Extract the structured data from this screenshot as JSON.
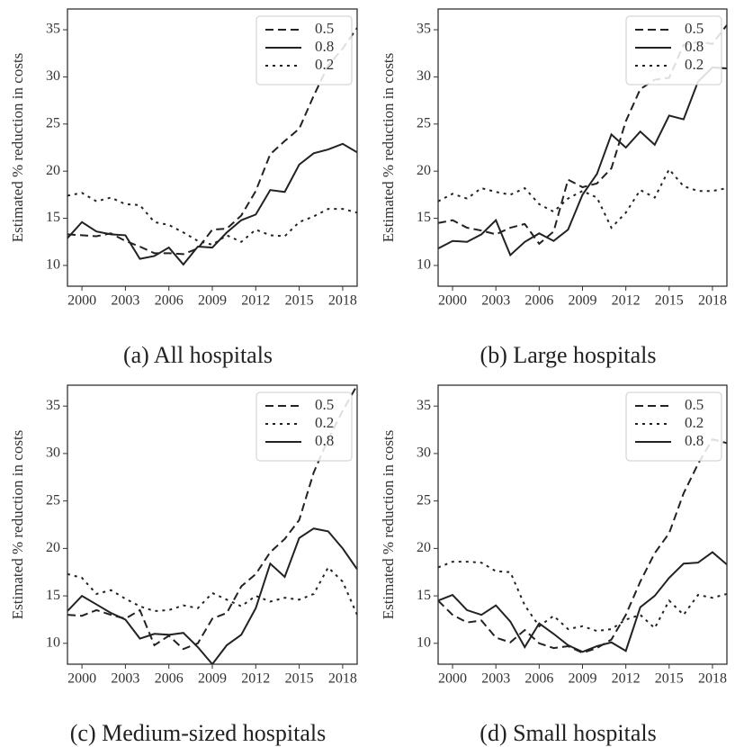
{
  "chart_data": [
    {
      "type": "line",
      "caption": "(a) All hospitals",
      "ylabel": "Estimated % reduction in costs",
      "x": [
        1999,
        2000,
        2001,
        2002,
        2003,
        2004,
        2005,
        2006,
        2007,
        2008,
        2009,
        2010,
        2011,
        2012,
        2013,
        2014,
        2015,
        2016,
        2017,
        2018,
        2019
      ],
      "xlim": [
        1999,
        2019
      ],
      "xticks": [
        2000,
        2003,
        2006,
        2009,
        2012,
        2015,
        2018
      ],
      "ylim": [
        7.8,
        37.2
      ],
      "yticks": [
        10,
        15,
        20,
        25,
        30,
        35
      ],
      "legend": "upper right",
      "series": [
        {
          "name": "0.5",
          "color": "#222222",
          "dash": "dashed",
          "values": [
            13.3,
            13.2,
            13.1,
            13.4,
            12.6,
            12.0,
            11.3,
            11.3,
            11.2,
            11.8,
            13.8,
            13.9,
            15.3,
            17.9,
            21.8,
            23.2,
            24.5,
            28.0,
            31.2,
            33.0,
            35.2
          ]
        },
        {
          "name": "0.8",
          "color": "#222222",
          "dash": "solid",
          "values": [
            12.9,
            14.6,
            13.6,
            13.3,
            13.2,
            10.7,
            11.0,
            11.9,
            10.1,
            12.0,
            11.9,
            13.5,
            14.8,
            15.4,
            18.0,
            17.8,
            20.7,
            21.9,
            22.3,
            22.9,
            22.0
          ]
        },
        {
          "name": "0.2",
          "color": "#222222",
          "dash": "dotted",
          "values": [
            17.4,
            17.7,
            16.8,
            17.2,
            16.5,
            16.4,
            14.6,
            14.3,
            13.5,
            12.6,
            12.2,
            13.2,
            12.5,
            13.8,
            13.2,
            13.1,
            14.6,
            15.2,
            16.0,
            16.0,
            15.6
          ]
        }
      ]
    },
    {
      "type": "line",
      "caption": "(b) Large hospitals",
      "ylabel": "Estimated % reduction in costs",
      "x": [
        1999,
        2000,
        2001,
        2002,
        2003,
        2004,
        2005,
        2006,
        2007,
        2008,
        2009,
        2010,
        2011,
        2012,
        2013,
        2014,
        2015,
        2016,
        2017,
        2018,
        2019
      ],
      "xlim": [
        1999,
        2019
      ],
      "xticks": [
        2000,
        2003,
        2006,
        2009,
        2012,
        2015,
        2018
      ],
      "ylim": [
        7.8,
        37.2
      ],
      "yticks": [
        10,
        15,
        20,
        25,
        30,
        35
      ],
      "legend": "upper right",
      "series": [
        {
          "name": "0.5",
          "color": "#222222",
          "dash": "dashed",
          "values": [
            14.5,
            14.8,
            14.0,
            13.7,
            13.3,
            14.0,
            14.4,
            12.3,
            13.6,
            19.1,
            18.3,
            18.7,
            20.3,
            25.3,
            28.7,
            29.7,
            29.9,
            33.4,
            33.7,
            33.5,
            35.5
          ]
        },
        {
          "name": "0.8",
          "color": "#222222",
          "dash": "solid",
          "values": [
            11.8,
            12.6,
            12.5,
            13.3,
            14.8,
            11.1,
            12.5,
            13.4,
            12.6,
            13.8,
            17.5,
            19.7,
            23.9,
            22.5,
            24.2,
            22.8,
            25.9,
            25.5,
            29.5,
            31.0,
            30.9
          ]
        },
        {
          "name": "0.2",
          "color": "#222222",
          "dash": "dotted",
          "values": [
            16.8,
            17.6,
            17.1,
            18.2,
            17.8,
            17.5,
            18.2,
            16.5,
            15.7,
            17.1,
            17.9,
            17.2,
            14.0,
            15.6,
            18.0,
            17.2,
            20.2,
            18.4,
            17.9,
            17.9,
            18.2
          ]
        }
      ]
    },
    {
      "type": "line",
      "caption": "(c) Medium-sized hospitals",
      "ylabel": "Estimated % reduction in costs",
      "x": [
        1999,
        2000,
        2001,
        2002,
        2003,
        2004,
        2005,
        2006,
        2007,
        2008,
        2009,
        2010,
        2011,
        2012,
        2013,
        2014,
        2015,
        2016,
        2017,
        2018,
        2019
      ],
      "xlim": [
        1999,
        2019
      ],
      "xticks": [
        2000,
        2003,
        2006,
        2009,
        2012,
        2015,
        2018
      ],
      "ylim": [
        7.8,
        37.2
      ],
      "yticks": [
        10,
        15,
        20,
        25,
        30,
        35
      ],
      "legend": "upper right",
      "series": [
        {
          "name": "0.5",
          "color": "#222222",
          "dash": "dashed",
          "values": [
            13.0,
            12.9,
            13.5,
            13.0,
            12.6,
            13.5,
            9.8,
            10.8,
            9.4,
            10.0,
            12.6,
            13.2,
            16.0,
            17.3,
            19.6,
            21.0,
            23.0,
            28.0,
            31.5,
            34.5,
            37.2
          ]
        },
        {
          "name": "0.2",
          "color": "#222222",
          "dash": "dotted",
          "values": [
            17.3,
            16.9,
            15.2,
            15.6,
            14.7,
            13.9,
            13.4,
            13.5,
            14.0,
            13.7,
            15.3,
            14.6,
            13.9,
            15.0,
            14.4,
            14.8,
            14.6,
            15.2,
            18.0,
            16.5,
            13.0
          ]
        },
        {
          "name": "0.8",
          "color": "#222222",
          "dash": "solid",
          "values": [
            13.4,
            15.0,
            14.1,
            13.2,
            12.5,
            10.5,
            11.0,
            10.9,
            11.1,
            9.6,
            7.8,
            9.8,
            10.9,
            13.7,
            18.4,
            17.0,
            21.1,
            22.1,
            21.8,
            20.0,
            17.8
          ]
        }
      ]
    },
    {
      "type": "line",
      "caption": "(d) Small hospitals",
      "ylabel": "Estimated % reduction in costs",
      "x": [
        1999,
        2000,
        2001,
        2002,
        2003,
        2004,
        2005,
        2006,
        2007,
        2008,
        2009,
        2010,
        2011,
        2012,
        2013,
        2014,
        2015,
        2016,
        2017,
        2018,
        2019
      ],
      "xlim": [
        1999,
        2019
      ],
      "xticks": [
        2000,
        2003,
        2006,
        2009,
        2012,
        2015,
        2018
      ],
      "ylim": [
        7.8,
        37.2
      ],
      "yticks": [
        10,
        15,
        20,
        25,
        30,
        35
      ],
      "legend": "upper right",
      "series": [
        {
          "name": "0.5",
          "color": "#222222",
          "dash": "dashed",
          "values": [
            14.5,
            13.0,
            12.2,
            12.4,
            10.6,
            10.1,
            11.4,
            10.0,
            9.5,
            9.7,
            9.0,
            9.5,
            10.4,
            13.0,
            16.5,
            19.5,
            21.6,
            25.8,
            28.9,
            31.5,
            31.1
          ]
        },
        {
          "name": "0.2",
          "color": "#222222",
          "dash": "dotted",
          "values": [
            18.0,
            18.6,
            18.6,
            18.5,
            17.6,
            17.5,
            14.0,
            11.8,
            12.9,
            11.5,
            11.8,
            11.3,
            11.5,
            12.5,
            13.0,
            11.6,
            14.5,
            13.0,
            15.1,
            14.8,
            15.2
          ]
        },
        {
          "name": "0.8",
          "color": "#222222",
          "dash": "solid",
          "values": [
            14.5,
            15.1,
            13.5,
            13.0,
            14.0,
            12.3,
            9.6,
            12.1,
            11.0,
            9.8,
            9.1,
            9.7,
            10.1,
            9.2,
            13.8,
            15.0,
            16.9,
            18.4,
            18.5,
            19.6,
            18.3
          ]
        }
      ]
    }
  ]
}
